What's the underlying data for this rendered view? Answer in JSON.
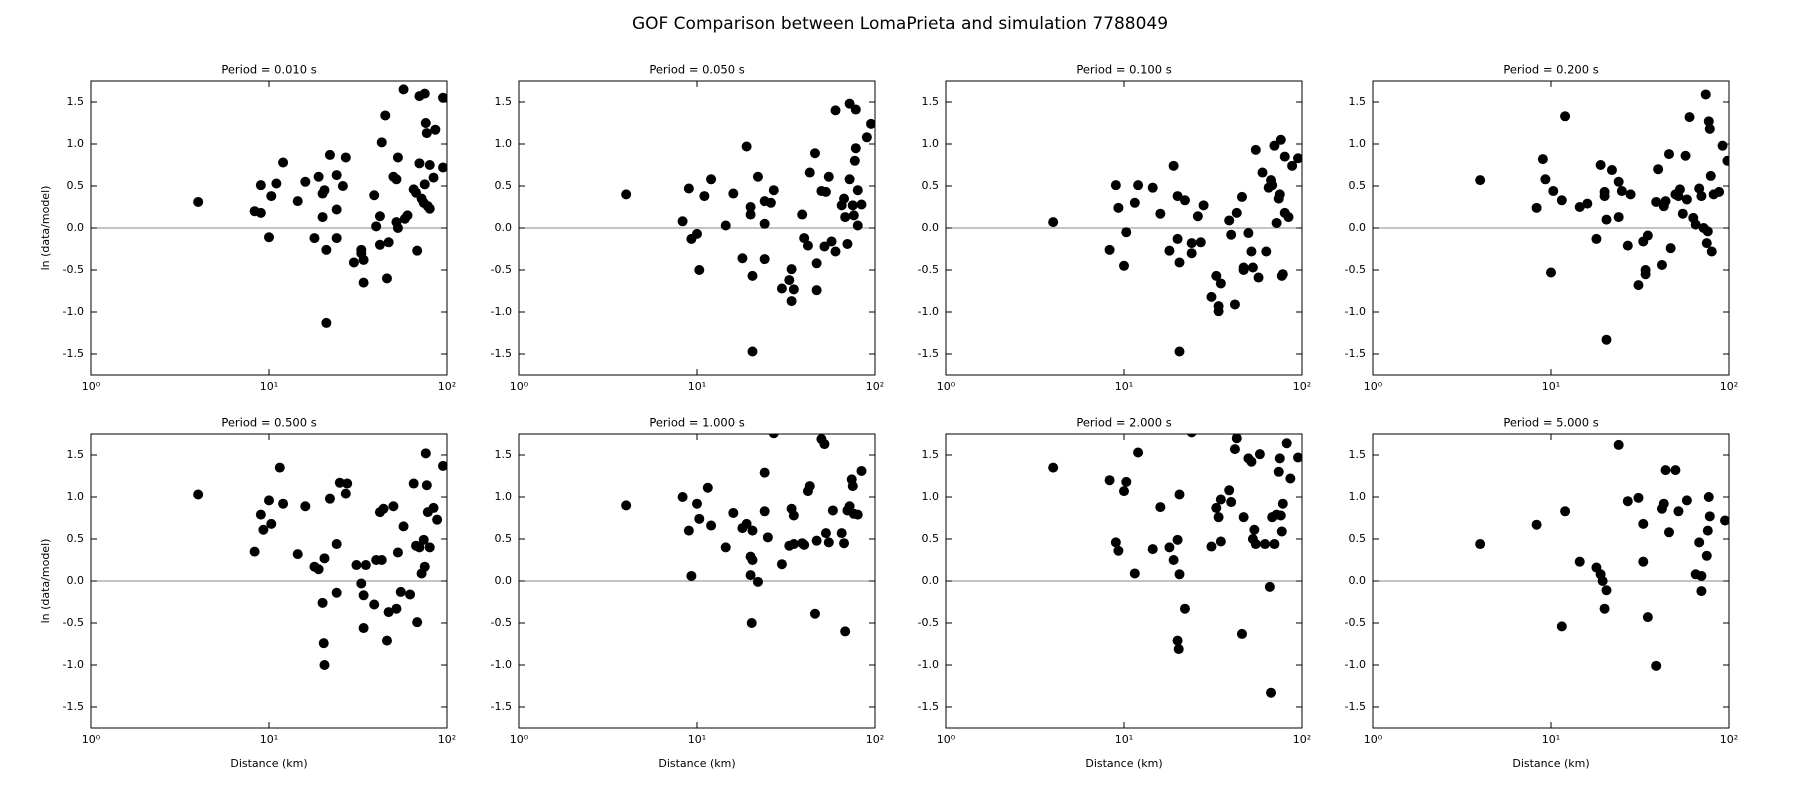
{
  "title": "GOF Comparison between LomaPrieta and simulation 7788049",
  "chart_data": [
    {
      "type": "scatter",
      "title": "Period = 0.010 s",
      "ylabel": "ln (data/model)",
      "xscale": "log",
      "color": "#000000",
      "hline": 0,
      "xlim": [
        1,
        100
      ],
      "xticks": [
        {
          "value": 1,
          "label": "10⁰"
        },
        {
          "value": 10,
          "label": "10¹"
        },
        {
          "value": 100,
          "label": "10²"
        }
      ],
      "ylim": [
        -1.75,
        1.75
      ],
      "yticks": [
        -1.5,
        {
          "value": -1,
          "label": "-1.0"
        },
        -0.5,
        {
          "value": 0,
          "label": "0.0"
        },
        0.5,
        {
          "value": 1,
          "label": "1.0"
        },
        1.5
      ],
      "x": [
        4,
        8.3,
        9,
        9,
        10,
        10.3,
        11,
        12,
        14.5,
        16,
        18,
        19,
        20,
        20,
        20.5,
        21,
        21,
        22,
        24,
        24,
        24,
        26,
        27,
        30,
        33,
        33,
        34,
        34,
        39,
        40,
        42,
        42,
        43,
        45,
        46,
        47,
        50,
        52,
        52,
        53,
        53,
        57,
        58,
        60,
        65,
        67,
        68,
        70,
        70,
        72,
        74,
        75,
        75,
        76,
        77,
        78,
        80,
        80,
        84,
        86,
        95,
        95
      ],
      "values": [
        0.31,
        0.2,
        0.18,
        0.51,
        -0.11,
        0.38,
        0.53,
        0.78,
        0.32,
        0.55,
        -0.12,
        0.61,
        0.13,
        0.41,
        0.45,
        -0.26,
        -1.13,
        0.87,
        0.22,
        0.63,
        -0.12,
        0.5,
        0.84,
        -0.41,
        -0.3,
        -0.26,
        -0.65,
        -0.38,
        0.39,
        0.02,
        0.14,
        -0.2,
        1.02,
        1.34,
        -0.6,
        -0.17,
        0.61,
        0.58,
        0.07,
        0.84,
        0.0,
        1.65,
        0.11,
        0.15,
        0.46,
        0.42,
        -0.27,
        0.77,
        1.57,
        0.35,
        0.3,
        0.52,
        1.6,
        1.25,
        1.13,
        0.26,
        0.75,
        0.23,
        0.6,
        1.17,
        1.55,
        0.72
      ]
    },
    {
      "type": "scatter",
      "title": "Period = 0.050 s",
      "xscale": "log",
      "color": "#000000",
      "hline": 0,
      "xlim": [
        1,
        100
      ],
      "xticks": [
        {
          "value": 1,
          "label": "10⁰"
        },
        {
          "value": 10,
          "label": "10¹"
        },
        {
          "value": 100,
          "label": "10²"
        }
      ],
      "ylim": [
        -1.75,
        1.75
      ],
      "yticks": [
        -1.5,
        {
          "value": -1,
          "label": "-1.0"
        },
        -0.5,
        {
          "value": 0,
          "label": "0.0"
        },
        0.5,
        {
          "value": 1,
          "label": "1.0"
        },
        1.5
      ],
      "x": [
        4,
        8.3,
        9,
        9.3,
        10,
        10.3,
        11,
        12,
        14.5,
        16,
        18,
        19,
        20,
        20,
        20.5,
        20.5,
        22,
        24,
        24,
        24,
        26,
        27,
        30,
        33,
        34,
        34,
        35,
        39,
        40,
        42,
        43,
        46,
        47,
        47,
        50,
        52,
        53,
        55,
        57,
        60,
        60,
        65,
        67,
        68,
        70,
        72,
        72,
        75,
        76,
        77,
        78,
        78,
        80,
        80,
        84,
        90,
        95
      ],
      "values": [
        0.4,
        0.08,
        0.47,
        -0.13,
        -0.07,
        -0.5,
        0.38,
        0.58,
        0.03,
        0.41,
        -0.36,
        0.97,
        0.16,
        0.25,
        -0.57,
        -1.47,
        0.61,
        0.32,
        -0.37,
        0.05,
        0.3,
        0.45,
        -0.72,
        -0.62,
        -0.49,
        -0.87,
        -0.73,
        0.16,
        -0.12,
        -0.21,
        0.66,
        0.89,
        -0.42,
        -0.74,
        0.44,
        -0.22,
        0.43,
        0.61,
        -0.16,
        1.4,
        -0.28,
        0.27,
        0.35,
        0.13,
        -0.19,
        1.48,
        0.58,
        0.27,
        0.15,
        0.8,
        0.95,
        1.41,
        0.03,
        0.45,
        0.28,
        1.08,
        1.24
      ]
    },
    {
      "type": "scatter",
      "title": "Period = 0.100 s",
      "xscale": "log",
      "color": "#000000",
      "hline": 0,
      "xlim": [
        1,
        100
      ],
      "xticks": [
        {
          "value": 1,
          "label": "10⁰"
        },
        {
          "value": 10,
          "label": "10¹"
        },
        {
          "value": 100,
          "label": "10²"
        }
      ],
      "ylim": [
        -1.75,
        1.75
      ],
      "yticks": [
        -1.5,
        {
          "value": -1,
          "label": "-1.0"
        },
        -0.5,
        {
          "value": 0,
          "label": "0.0"
        },
        0.5,
        {
          "value": 1,
          "label": "1.0"
        },
        1.5
      ],
      "x": [
        4,
        8.3,
        9,
        9.3,
        10,
        10.3,
        11.5,
        12,
        14.5,
        16,
        18,
        19,
        20,
        20,
        20.5,
        20.5,
        22,
        24,
        24,
        26,
        27,
        28,
        31,
        33,
        34,
        34,
        35,
        39,
        40,
        42,
        43,
        46,
        47,
        47,
        50,
        52,
        53,
        55,
        57,
        60,
        63,
        65,
        67,
        68,
        70,
        72,
        74,
        75,
        76,
        77,
        78,
        80,
        80,
        84,
        88,
        95
      ],
      "values": [
        0.07,
        -0.26,
        0.51,
        0.24,
        -0.45,
        -0.05,
        0.3,
        0.51,
        0.48,
        0.17,
        -0.27,
        0.74,
        0.38,
        -0.13,
        -0.41,
        -1.47,
        0.33,
        -0.18,
        -0.3,
        0.14,
        -0.17,
        0.27,
        -0.82,
        -0.57,
        -0.93,
        -0.99,
        -0.66,
        0.09,
        -0.08,
        -0.91,
        0.18,
        0.37,
        -0.5,
        -0.47,
        -0.06,
        -0.28,
        -0.47,
        0.93,
        -0.59,
        0.66,
        -0.28,
        0.48,
        0.57,
        0.51,
        0.98,
        0.06,
        0.35,
        0.4,
        1.05,
        -0.57,
        -0.55,
        0.85,
        0.18,
        0.13,
        0.74,
        0.83
      ]
    },
    {
      "type": "scatter",
      "title": "Period = 0.200 s",
      "xscale": "log",
      "color": "#000000",
      "hline": 0,
      "xlim": [
        1,
        100
      ],
      "xticks": [
        {
          "value": 1,
          "label": "10⁰"
        },
        {
          "value": 10,
          "label": "10¹"
        },
        {
          "value": 100,
          "label": "10²"
        }
      ],
      "ylim": [
        -1.75,
        1.75
      ],
      "yticks": [
        -1.5,
        {
          "value": -1,
          "label": "-1.0"
        },
        -0.5,
        {
          "value": 0,
          "label": "0.0"
        },
        0.5,
        {
          "value": 1,
          "label": "1.0"
        },
        1.5
      ],
      "x": [
        4,
        8.3,
        9,
        9.3,
        10,
        10.3,
        11.5,
        12,
        14.5,
        16,
        18,
        19,
        20,
        20,
        20.5,
        20.5,
        22,
        24,
        24,
        25,
        27,
        28,
        31,
        33,
        34,
        34,
        35,
        39,
        40,
        42,
        43,
        44,
        46,
        47,
        50,
        52,
        53,
        55,
        57,
        58,
        60,
        63,
        65,
        68,
        70,
        72,
        74,
        75,
        76,
        77,
        78,
        79,
        80,
        82,
        88,
        92,
        98
      ],
      "values": [
        0.57,
        0.24,
        0.82,
        0.58,
        -0.53,
        0.44,
        0.33,
        1.33,
        0.25,
        0.29,
        -0.13,
        0.75,
        0.43,
        0.38,
        0.1,
        -1.33,
        0.69,
        0.55,
        0.13,
        0.44,
        -0.21,
        0.4,
        -0.68,
        -0.16,
        -0.5,
        -0.55,
        -0.09,
        0.31,
        0.7,
        -0.44,
        0.26,
        0.32,
        0.88,
        -0.24,
        0.4,
        0.38,
        0.46,
        0.17,
        0.86,
        0.34,
        1.32,
        0.12,
        0.04,
        0.47,
        0.38,
        0.0,
        1.59,
        -0.18,
        -0.04,
        1.27,
        1.18,
        0.62,
        -0.28,
        0.4,
        0.43,
        0.98,
        0.8
      ]
    },
    {
      "type": "scatter",
      "title": "Period = 0.500 s",
      "ylabel": "ln (data/model)",
      "xlabel": "Distance (km)",
      "xscale": "log",
      "color": "#000000",
      "hline": 0,
      "xlim": [
        1,
        100
      ],
      "xticks": [
        {
          "value": 1,
          "label": "10⁰"
        },
        {
          "value": 10,
          "label": "10¹"
        },
        {
          "value": 100,
          "label": "10²"
        }
      ],
      "ylim": [
        -1.75,
        1.75
      ],
      "yticks": [
        -1.5,
        {
          "value": -1,
          "label": "-1.0"
        },
        -0.5,
        {
          "value": 0,
          "label": "0.0"
        },
        0.5,
        {
          "value": 1,
          "label": "1.0"
        },
        1.5
      ],
      "x": [
        4,
        8.3,
        9,
        9.3,
        10,
        10.3,
        11.5,
        12,
        14.5,
        16,
        18,
        19,
        20,
        20.3,
        20.5,
        20.5,
        22,
        24,
        24,
        25,
        27,
        27.5,
        31,
        33,
        34,
        34,
        35,
        39,
        40,
        42,
        43,
        44,
        46,
        47,
        50,
        52,
        53,
        55,
        57,
        62,
        65,
        67,
        68,
        70,
        72,
        74,
        75,
        76,
        77,
        78,
        80,
        84,
        88,
        95
      ],
      "values": [
        1.03,
        0.35,
        0.79,
        0.61,
        0.96,
        0.68,
        1.35,
        0.92,
        0.32,
        0.89,
        0.17,
        0.14,
        -0.26,
        -0.74,
        -1.0,
        0.27,
        0.98,
        0.44,
        -0.14,
        1.17,
        1.04,
        1.16,
        0.19,
        -0.03,
        -0.17,
        -0.56,
        0.19,
        -0.28,
        0.25,
        0.82,
        0.25,
        0.86,
        -0.71,
        -0.37,
        0.89,
        -0.33,
        0.34,
        -0.13,
        0.65,
        -0.16,
        1.16,
        0.42,
        -0.49,
        0.4,
        0.09,
        0.49,
        0.17,
        1.52,
        1.14,
        0.82,
        0.4,
        0.87,
        0.73,
        1.37
      ]
    },
    {
      "type": "scatter",
      "title": "Period = 1.000 s",
      "xlabel": "Distance (km)",
      "xscale": "log",
      "color": "#000000",
      "hline": 0,
      "xlim": [
        1,
        100
      ],
      "xticks": [
        {
          "value": 1,
          "label": "10⁰"
        },
        {
          "value": 10,
          "label": "10¹"
        },
        {
          "value": 100,
          "label": "10²"
        }
      ],
      "ylim": [
        -1.75,
        1.75
      ],
      "yticks": [
        -1.5,
        {
          "value": -1,
          "label": "-1.0"
        },
        -0.5,
        {
          "value": 0,
          "label": "0.0"
        },
        0.5,
        {
          "value": 1,
          "label": "1.0"
        },
        1.5
      ],
      "x": [
        4,
        8.3,
        9,
        9.3,
        10,
        10.3,
        11.5,
        12,
        14.5,
        16,
        18,
        19,
        20,
        20,
        20.3,
        20.5,
        20.5,
        22,
        24,
        24,
        25,
        27,
        30,
        33,
        34,
        35,
        35,
        39,
        40,
        42,
        43,
        46,
        47,
        50,
        52,
        53,
        55,
        58,
        65,
        67,
        68,
        70,
        72,
        74,
        75,
        76,
        80,
        84
      ],
      "values": [
        0.9,
        1.0,
        0.6,
        0.06,
        0.92,
        0.74,
        1.11,
        0.66,
        0.4,
        0.81,
        0.63,
        0.68,
        0.07,
        0.29,
        -0.5,
        0.25,
        0.6,
        -0.01,
        1.29,
        0.83,
        0.52,
        1.76,
        0.2,
        0.42,
        0.86,
        0.44,
        0.78,
        0.45,
        0.43,
        1.07,
        1.13,
        -0.39,
        0.48,
        1.69,
        1.63,
        0.57,
        0.46,
        0.84,
        0.57,
        0.45,
        -0.6,
        0.84,
        0.89,
        1.21,
        1.13,
        0.8,
        0.79,
        1.31
      ]
    },
    {
      "type": "scatter",
      "title": "Period = 2.000 s",
      "xlabel": "Distance (km)",
      "xscale": "log",
      "color": "#000000",
      "hline": 0,
      "xlim": [
        1,
        100
      ],
      "xticks": [
        {
          "value": 1,
          "label": "10⁰"
        },
        {
          "value": 10,
          "label": "10¹"
        },
        {
          "value": 100,
          "label": "10²"
        }
      ],
      "ylim": [
        -1.75,
        1.75
      ],
      "yticks": [
        -1.5,
        {
          "value": -1,
          "label": "-1.0"
        },
        -0.5,
        {
          "value": 0,
          "label": "0.0"
        },
        0.5,
        {
          "value": 1,
          "label": "1.0"
        },
        1.5
      ],
      "x": [
        4,
        8.3,
        9,
        9.3,
        10,
        10.3,
        11.5,
        12,
        14.5,
        16,
        18,
        19,
        20,
        20,
        20.3,
        20.5,
        20.5,
        22,
        24,
        31,
        33,
        34,
        35,
        35,
        39,
        40,
        42,
        43,
        46,
        47,
        50,
        52,
        53,
        54,
        55,
        58,
        62,
        66,
        67,
        68,
        70,
        72,
        74,
        75,
        76,
        77,
        78,
        82,
        86,
        95
      ],
      "values": [
        1.35,
        1.2,
        0.46,
        0.36,
        1.07,
        1.18,
        0.09,
        1.53,
        0.38,
        0.88,
        0.4,
        0.25,
        0.49,
        -0.71,
        -0.81,
        1.03,
        0.08,
        -0.33,
        1.77,
        0.41,
        0.87,
        0.76,
        0.47,
        0.97,
        1.08,
        0.94,
        1.57,
        1.7,
        -0.63,
        0.76,
        1.46,
        1.42,
        0.5,
        0.61,
        0.44,
        1.51,
        0.44,
        -0.07,
        -1.33,
        0.76,
        0.44,
        0.79,
        1.3,
        1.46,
        0.78,
        0.59,
        0.92,
        1.64,
        1.22,
        1.47
      ]
    },
    {
      "type": "scatter",
      "title": "Period = 5.000 s",
      "xlabel": "Distance (km)",
      "xscale": "log",
      "color": "#000000",
      "hline": 0,
      "xlim": [
        1,
        100
      ],
      "xticks": [
        {
          "value": 1,
          "label": "10⁰"
        },
        {
          "value": 10,
          "label": "10¹"
        },
        {
          "value": 100,
          "label": "10²"
        }
      ],
      "ylim": [
        -1.75,
        1.75
      ],
      "yticks": [
        -1.5,
        {
          "value": -1,
          "label": "-1.0"
        },
        -0.5,
        {
          "value": 0,
          "label": "0.0"
        },
        0.5,
        {
          "value": 1,
          "label": "1.0"
        },
        1.5
      ],
      "x": [
        4,
        8.3,
        11.5,
        12,
        14.5,
        18,
        19,
        19.5,
        20,
        20.5,
        24,
        27,
        31,
        33,
        33,
        35,
        39,
        42,
        43,
        44,
        46,
        50,
        52,
        58,
        65,
        68,
        70,
        70,
        75,
        76,
        77,
        78,
        95
      ],
      "values": [
        0.44,
        0.67,
        -0.54,
        0.83,
        0.23,
        0.16,
        0.08,
        0.0,
        -0.33,
        -0.11,
        1.62,
        0.95,
        0.99,
        0.23,
        0.68,
        -0.43,
        -1.01,
        0.86,
        0.92,
        1.32,
        0.58,
        1.32,
        0.83,
        0.96,
        0.08,
        0.46,
        0.06,
        -0.12,
        0.3,
        0.6,
        1.0,
        0.77,
        0.72
      ]
    }
  ]
}
